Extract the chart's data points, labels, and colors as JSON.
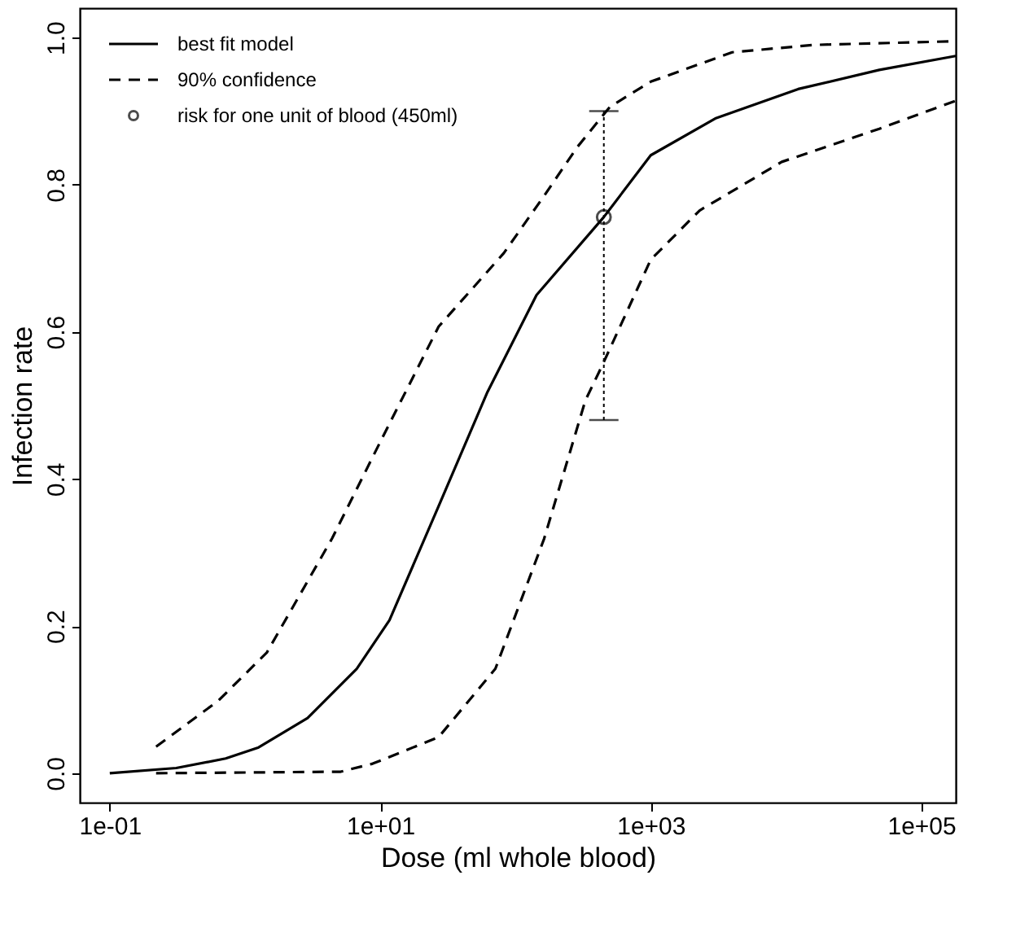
{
  "chart_data": {
    "type": "line",
    "xlabel": "Dose (ml whole blood)",
    "ylabel": "Infection rate",
    "log": "x",
    "grid": false,
    "legend": "top left",
    "xlim": [
      0.06,
      180000
    ],
    "ylim": [
      -0.04,
      1.04
    ],
    "xticks": [
      {
        "value": 0.1,
        "label": "1e-01"
      },
      {
        "value": 10,
        "label": "1e+01"
      },
      {
        "value": 1000,
        "label": "1e+03"
      },
      {
        "value": 100000,
        "label": "1e+05"
      }
    ],
    "yticks": [
      {
        "value": 0,
        "label": "0.0"
      },
      {
        "value": 0.2,
        "label": "0.2"
      },
      {
        "value": 0.4,
        "label": "0.4"
      },
      {
        "value": 0.6,
        "label": "0.6"
      },
      {
        "value": 0.8,
        "label": "0.8"
      },
      {
        "value": 1,
        "label": "1.0"
      }
    ],
    "series": [
      {
        "name": "best fit model",
        "color": "#000000",
        "line_style": "solid",
        "x": [
          0.1,
          0.31,
          0.72,
          1.26,
          2.9,
          6.7,
          11.7,
          27,
          62,
          143,
          450,
          1000,
          3000,
          12300,
          49000,
          180000
        ],
        "values": [
          0,
          0.007,
          0.02,
          0.035,
          0.075,
          0.142,
          0.208,
          0.363,
          0.518,
          0.65,
          0.756,
          0.84,
          0.89,
          0.93,
          0.956,
          0.975
        ]
      },
      {
        "name": "90% confidence",
        "color": "#000000",
        "line_style": "dashed",
        "x": [
          0.22,
          0.63,
          1.45,
          4.4,
          10.1,
          27,
          82,
          163,
          286,
          500,
          1000,
          4000,
          16000,
          180000
        ],
        "values": [
          0.036,
          0.098,
          0.164,
          0.319,
          0.452,
          0.607,
          0.707,
          0.785,
          0.851,
          0.906,
          0.94,
          0.98,
          0.99,
          0.995
        ]
      },
      {
        "color": "#000000",
        "line_style": "dashed",
        "x": [
          0.22,
          5.1,
          8.8,
          27,
          71,
          163,
          329,
          437,
          1000,
          2300,
          9300,
          49000,
          180000
        ],
        "values": [
          0,
          0.002,
          0.013,
          0.049,
          0.142,
          0.319,
          0.507,
          0.554,
          0.698,
          0.765,
          0.831,
          0.876,
          0.914
        ]
      },
      {
        "name": "risk for one unit of blood (450ml)",
        "type": "scatter",
        "color": "#000000",
        "marker": "circle",
        "x": [
          450
        ],
        "values": [
          0.756
        ],
        "errors": [
          [
            0.48,
            0.9
          ]
        ]
      }
    ]
  }
}
